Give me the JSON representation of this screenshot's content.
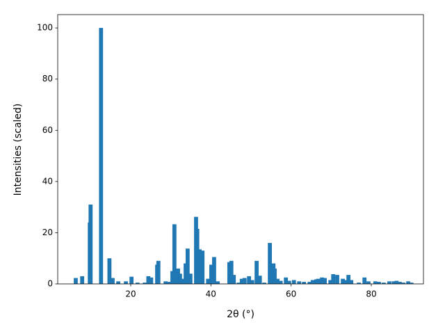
{
  "chart_data": {
    "type": "bar",
    "xlabel": "2θ (°)",
    "ylabel": "Intensities (scaled)",
    "x": [
      6.3,
      7.9,
      9.8,
      10.0,
      12.6,
      14.7,
      15.5,
      16.9,
      18.8,
      20.2,
      21.7,
      23.5,
      24.4,
      25.1,
      26.6,
      26.9,
      28.7,
      29.6,
      30.4,
      30.9,
      31.8,
      32.3,
      32.8,
      33.7,
      34.2,
      34.9,
      36.3,
      36.6,
      37.2,
      37.9,
      39.3,
      40.1,
      40.8,
      41.7,
      44.6,
      45.1,
      45.7,
      46.9,
      47.7,
      48.4,
      49.5,
      50.3,
      51.4,
      52.2,
      53.3,
      54.7,
      55.6,
      55.9,
      56.6,
      57.4,
      58.7,
      59.5,
      60.7,
      62.0,
      63.2,
      64.6,
      65.4,
      66.3,
      66.8,
      67.7,
      68.4,
      69.8,
      70.5,
      71.5,
      72.9,
      73.6,
      74.3,
      75.0,
      76.9,
      78.3,
      79.3,
      81.0,
      81.9,
      83.1,
      84.5,
      85.6,
      86.3,
      87.1,
      88.0,
      89.2,
      90.0
    ],
    "values": [
      2.3,
      3,
      24,
      31,
      100,
      10,
      2.3,
      1,
      1,
      2.8,
      0.5,
      0.5,
      3,
      2.5,
      7.5,
      9,
      1,
      0.8,
      5,
      23.3,
      6,
      4,
      2,
      8,
      13.8,
      4,
      26.2,
      21.5,
      13.5,
      13,
      2,
      7.5,
      10.5,
      1,
      8.5,
      9,
      3.5,
      0.5,
      2,
      2.3,
      3,
      1.5,
      9,
      3.2,
      0.5,
      16,
      8,
      6,
      2,
      1.2,
      2.5,
      1.2,
      1.5,
      1,
      0.8,
      0.8,
      1.5,
      1.8,
      2,
      2.5,
      2.3,
      1.5,
      3.8,
      3.5,
      2,
      1.5,
      3.5,
      1.5,
      0.5,
      2.5,
      1,
      1,
      0.8,
      0.5,
      1,
      1,
      1.2,
      0.8,
      0.5,
      1,
      0.5
    ],
    "color": "#1f77b4",
    "xlim": [
      1.8,
      93.0
    ],
    "xticks": [
      20,
      40,
      60,
      80
    ],
    "ylim": [
      0,
      105.2
    ],
    "yticks": [
      0,
      20,
      40,
      60,
      80,
      100
    ]
  }
}
